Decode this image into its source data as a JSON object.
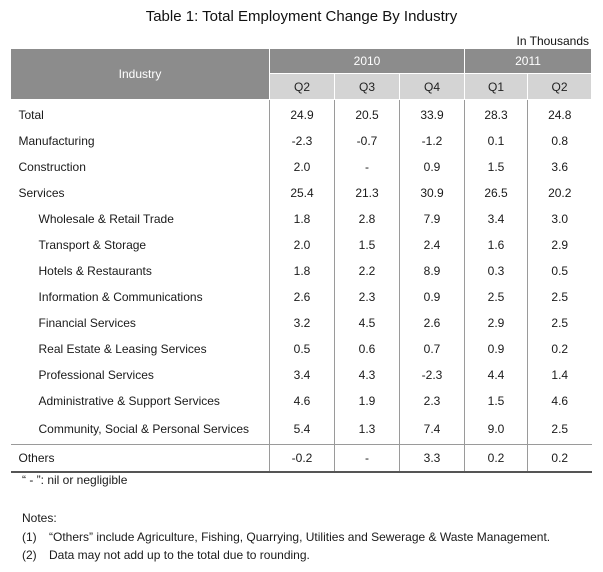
{
  "title": "Table 1: Total Employment Change By Industry",
  "unit_label": "In Thousands",
  "table": {
    "industry_header": "Industry",
    "years": [
      {
        "label": "2010",
        "quarters": [
          "Q2",
          "Q3",
          "Q4"
        ]
      },
      {
        "label": "2011",
        "quarters": [
          "Q1",
          "Q2"
        ]
      }
    ],
    "rows": [
      {
        "name": "Total",
        "indent": false,
        "values": [
          "24.9",
          "20.5",
          "33.9",
          "28.3",
          "24.8"
        ]
      },
      {
        "name": "Manufacturing",
        "indent": false,
        "values": [
          "-2.3",
          "-0.7",
          "-1.2",
          "0.1",
          "0.8"
        ]
      },
      {
        "name": "Construction",
        "indent": false,
        "values": [
          "2.0",
          "-",
          "0.9",
          "1.5",
          "3.6"
        ]
      },
      {
        "name": "Services",
        "indent": false,
        "values": [
          "25.4",
          "21.3",
          "30.9",
          "26.5",
          "20.2"
        ]
      },
      {
        "name": "Wholesale & Retail Trade",
        "indent": true,
        "values": [
          "1.8",
          "2.8",
          "7.9",
          "3.4",
          "3.0"
        ]
      },
      {
        "name": "Transport & Storage",
        "indent": true,
        "values": [
          "2.0",
          "1.5",
          "2.4",
          "1.6",
          "2.9"
        ]
      },
      {
        "name": "Hotels & Restaurants",
        "indent": true,
        "values": [
          "1.8",
          "2.2",
          "8.9",
          "0.3",
          "0.5"
        ]
      },
      {
        "name": "Information & Communications",
        "indent": true,
        "values": [
          "2.6",
          "2.3",
          "0.9",
          "2.5",
          "2.5"
        ]
      },
      {
        "name": "Financial Services",
        "indent": true,
        "values": [
          "3.2",
          "4.5",
          "2.6",
          "2.9",
          "2.5"
        ]
      },
      {
        "name": "Real Estate & Leasing Services",
        "indent": true,
        "values": [
          "0.5",
          "0.6",
          "0.7",
          "0.9",
          "0.2"
        ]
      },
      {
        "name": "Professional Services",
        "indent": true,
        "values": [
          "3.4",
          "4.3",
          "-2.3",
          "4.4",
          "1.4"
        ]
      },
      {
        "name": "Administrative & Support Services",
        "indent": true,
        "values": [
          "4.6",
          "1.9",
          "2.3",
          "1.5",
          "4.6"
        ]
      },
      {
        "name": "Community, Social & Personal Services",
        "indent": true,
        "values": [
          "5.4",
          "1.3",
          "7.4",
          "9.0",
          "2.5"
        ]
      },
      {
        "name": "Others",
        "indent": false,
        "values": [
          "-0.2",
          "-",
          "3.3",
          "0.2",
          "0.2"
        ]
      }
    ]
  },
  "footnote": "“ - ”: nil or negligible",
  "notes_heading": "Notes:",
  "notes": [
    {
      "num": "(1)",
      "text": "“Others” include Agriculture, Fishing, Quarrying, Utilities and Sewerage & Waste Management."
    },
    {
      "num": "(2)",
      "text": "Data may not add up to the total due to rounding."
    }
  ],
  "colors": {
    "header_dark": "#8c8c8c",
    "header_light": "#d4d4d4"
  }
}
